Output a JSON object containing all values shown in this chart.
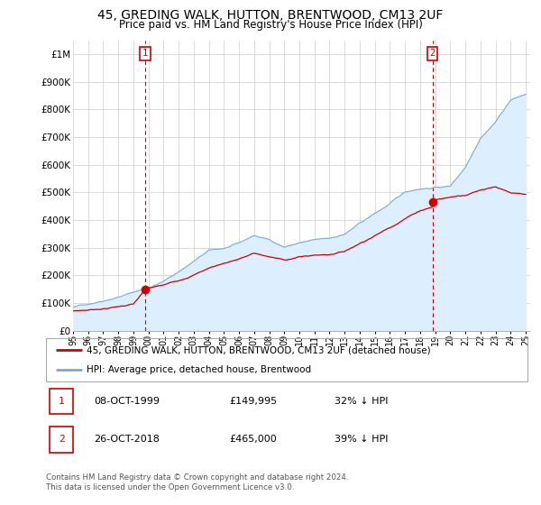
{
  "title": "45, GREDING WALK, HUTTON, BRENTWOOD, CM13 2UF",
  "subtitle": "Price paid vs. HM Land Registry's House Price Index (HPI)",
  "hpi_label": "HPI: Average price, detached house, Brentwood",
  "price_label": "45, GREDING WALK, HUTTON, BRENTWOOD, CM13 2UF (detached house)",
  "footer": "Contains HM Land Registry data © Crown copyright and database right 2024.\nThis data is licensed under the Open Government Licence v3.0.",
  "annotation1": {
    "num": "1",
    "date": "08-OCT-1999",
    "price": "£149,995",
    "pct": "32% ↓ HPI"
  },
  "annotation2": {
    "num": "2",
    "date": "26-OCT-2018",
    "price": "£465,000",
    "pct": "39% ↓ HPI"
  },
  "ylim": [
    0,
    1050000
  ],
  "yticks": [
    0,
    100000,
    200000,
    300000,
    400000,
    500000,
    600000,
    700000,
    800000,
    900000,
    1000000
  ],
  "ytick_labels": [
    "£0",
    "£100K",
    "£200K",
    "£300K",
    "£400K",
    "£500K",
    "£600K",
    "£700K",
    "£800K",
    "£900K",
    "£1M"
  ],
  "price_color": "#cc0000",
  "hpi_color": "#7aaad0",
  "hpi_fill_color": "#ddeeff",
  "annotation_box_color": "#cc0000",
  "sale1_year": 1999.78,
  "sale1_price": 149995,
  "sale2_year": 2018.82,
  "sale2_price": 465000,
  "hpi_base": {
    "1995": 85000,
    "1996": 97000,
    "1997": 112000,
    "1998": 128000,
    "1999": 145000,
    "2000": 162000,
    "2001": 185000,
    "2002": 220000,
    "2003": 258000,
    "2004": 295000,
    "2005": 302000,
    "2006": 318000,
    "2007": 345000,
    "2008": 330000,
    "2009": 305000,
    "2010": 320000,
    "2011": 328000,
    "2012": 332000,
    "2013": 348000,
    "2014": 385000,
    "2015": 420000,
    "2016": 455000,
    "2017": 495000,
    "2018": 510000,
    "2019": 515000,
    "2020": 520000,
    "2021": 590000,
    "2022": 700000,
    "2023": 760000,
    "2024": 840000,
    "2025": 860000
  },
  "price_base": {
    "1995": 72000,
    "1996": 76000,
    "1997": 82000,
    "1998": 90000,
    "1999": 100000,
    "1999.78": 149995,
    "2000": 155000,
    "2001": 165000,
    "2002": 182000,
    "2003": 205000,
    "2004": 230000,
    "2005": 248000,
    "2006": 265000,
    "2007": 285000,
    "2008": 272000,
    "2009": 260000,
    "2010": 272000,
    "2011": 278000,
    "2012": 282000,
    "2013": 295000,
    "2014": 325000,
    "2015": 355000,
    "2016": 385000,
    "2017": 420000,
    "2018": 450000,
    "2018.82": 465000,
    "2019": 490000,
    "2020": 500000,
    "2021": 510000,
    "2022": 530000,
    "2023": 545000,
    "2024": 520000,
    "2025": 510000
  }
}
